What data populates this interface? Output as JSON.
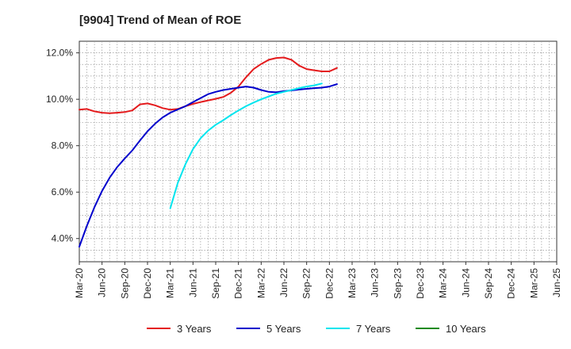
{
  "chart_data": {
    "type": "line",
    "title": "[9904]  Trend of Mean of ROE",
    "xlabel": "",
    "ylabel": "",
    "x_ticks": [
      "Mar-20",
      "Jun-20",
      "Sep-20",
      "Dec-20",
      "Mar-21",
      "Jun-21",
      "Sep-21",
      "Dec-21",
      "Mar-22",
      "Jun-22",
      "Sep-22",
      "Dec-22",
      "Mar-23",
      "Jun-23",
      "Sep-23",
      "Dec-23",
      "Mar-24",
      "Jun-24",
      "Sep-24",
      "Dec-24",
      "Mar-25",
      "Jun-25"
    ],
    "y_ticks": [
      "4.0%",
      "6.0%",
      "8.0%",
      "10.0%",
      "12.0%"
    ],
    "ylim": [
      3.0,
      12.5
    ],
    "grid": true,
    "legend_position": "bottom",
    "series": [
      {
        "name": "3 Years",
        "color": "#e41a1c",
        "values": [
          9.55,
          9.58,
          9.48,
          9.42,
          9.4,
          9.42,
          9.45,
          9.52,
          9.78,
          9.82,
          9.74,
          9.62,
          9.55,
          9.58,
          9.7,
          9.8,
          9.88,
          9.95,
          10.02,
          10.1,
          10.28,
          10.55,
          10.95,
          11.3,
          11.52,
          11.7,
          11.78,
          11.8,
          11.7,
          11.45,
          11.3,
          11.25,
          11.2,
          11.2,
          11.35
        ]
      },
      {
        "name": "5 Years",
        "color": "#0000cc",
        "values": [
          3.65,
          4.55,
          5.35,
          6.05,
          6.62,
          7.08,
          7.45,
          7.8,
          8.22,
          8.62,
          8.95,
          9.22,
          9.42,
          9.56,
          9.7,
          9.88,
          10.05,
          10.22,
          10.32,
          10.4,
          10.45,
          10.5,
          10.55,
          10.5,
          10.4,
          10.32,
          10.3,
          10.35,
          10.38,
          10.42,
          10.45,
          10.48,
          10.5,
          10.55,
          10.65
        ]
      },
      {
        "name": "7 Years",
        "color": "#00e5ee",
        "values": [
          null,
          null,
          null,
          null,
          null,
          null,
          null,
          null,
          null,
          null,
          null,
          null,
          5.3,
          6.4,
          7.2,
          7.85,
          8.32,
          8.65,
          8.9,
          9.1,
          9.32,
          9.52,
          9.7,
          9.86,
          10.0,
          10.12,
          10.24,
          10.32,
          10.4,
          10.48,
          10.55,
          10.6,
          10.68
        ]
      },
      {
        "name": "10 Years",
        "color": "#1a8a1a",
        "values": []
      }
    ]
  }
}
